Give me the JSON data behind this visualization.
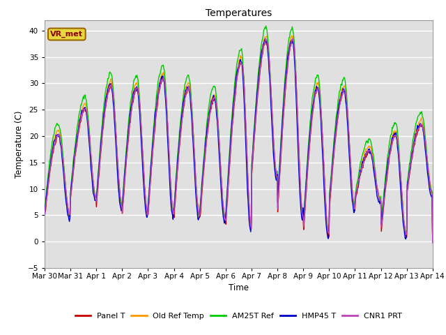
{
  "title": "Temperatures",
  "xlabel": "Time",
  "ylabel": "Temperature (C)",
  "ylim": [
    -5,
    42
  ],
  "yticks": [
    -5,
    0,
    5,
    10,
    15,
    20,
    25,
    30,
    35,
    40
  ],
  "plot_bg_color": "#e0e0e0",
  "annotation_text": "VR_met",
  "annotation_color": "#8B0000",
  "annotation_bg": "#e8d840",
  "annotation_edge": "#996600",
  "legend_entries": [
    "Panel T",
    "Old Ref Temp",
    "AM25T Ref",
    "HMP45 T",
    "CNR1 PRT"
  ],
  "line_colors": [
    "#cc0000",
    "#ff9900",
    "#00cc00",
    "#0000cc",
    "#bb44bb"
  ],
  "line_width": 1.0,
  "num_days": 15,
  "xtick_labels": [
    "Mar 30",
    "Mar 31",
    "Apr 1",
    "Apr 2",
    "Apr 3",
    "Apr 4",
    "Apr 5",
    "Apr 6",
    "Apr 7",
    "Apr 8",
    "Apr 9",
    "Apr 10",
    "Apr 11",
    "Apr 12",
    "Apr 13",
    "Apr 14"
  ],
  "daily_peaks": [
    20.0,
    25.0,
    29.5,
    29.0,
    31.0,
    29.0,
    27.0,
    34.0,
    38.0,
    38.0,
    29.0,
    28.5,
    17.0,
    20.0,
    22.0
  ],
  "daily_troughs": [
    4.5,
    8.0,
    6.5,
    5.0,
    5.0,
    4.5,
    4.0,
    2.5,
    12.0,
    4.5,
    1.0,
    6.0,
    7.5,
    1.0,
    9.0
  ],
  "peak_time_frac": [
    0.55,
    0.58,
    0.58,
    0.58,
    0.6,
    0.58,
    0.58,
    0.62,
    0.58,
    0.6,
    0.58,
    0.6,
    0.58,
    0.58,
    0.58
  ],
  "series_peak_adj": [
    0.0,
    1.0,
    2.5,
    0.3,
    0.2
  ],
  "series_trough_adj": [
    0.0,
    0.5,
    0.5,
    -0.5,
    0.3
  ],
  "series_time_shift": [
    0.0,
    0.01,
    0.02,
    0.03,
    0.005
  ]
}
